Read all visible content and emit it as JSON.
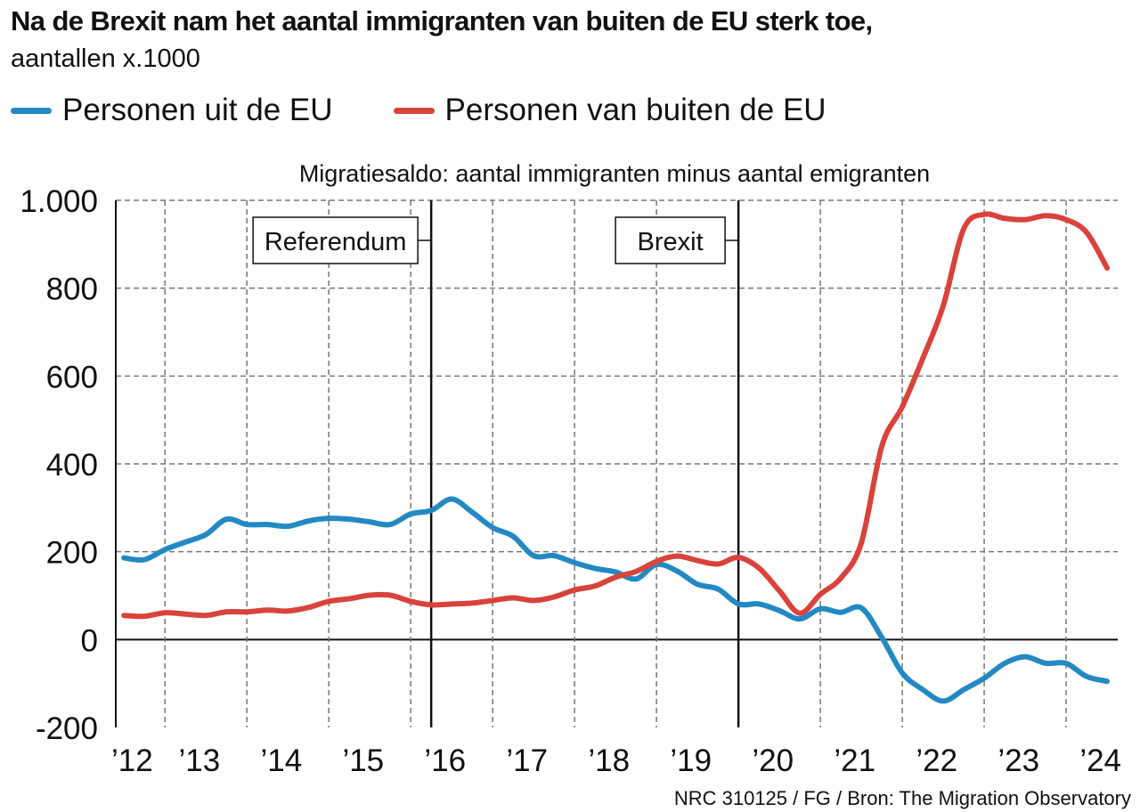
{
  "title": "Na de Brexit nam het aantal immigranten van buiten de EU sterk toe,",
  "subtitle": "aantallen x.1000",
  "source": "NRC 310125 / FG / Bron: The Migration Observatory",
  "chart_data": {
    "type": "line",
    "title": "Migratiesaldo: aantal immigranten minus  aantal emigranten",
    "xlim": [
      2012.4,
      2024.63
    ],
    "ylim": [
      -200,
      1000
    ],
    "yticks": [
      -200,
      0,
      200,
      400,
      600,
      800,
      1000
    ],
    "ytick_labels": [
      "-200",
      "0",
      "200",
      "400",
      "600",
      "800",
      "1.000"
    ],
    "xtick_labels": [
      "’12",
      "’13",
      "’14",
      "’15",
      "’16",
      "’17",
      "’18",
      "’19",
      "’20",
      "’21",
      "’22",
      "’23",
      "’24"
    ],
    "grid": true,
    "legend_placement": "top-left",
    "annotations": [
      {
        "label": "Referendum",
        "x": 2016.25
      },
      {
        "label": "Brexit",
        "x": 2020.0
      }
    ],
    "series": [
      {
        "name": "Personen uit de EU",
        "color": "#2389c3",
        "x": [
          2012.5,
          2012.75,
          2013,
          2013.25,
          2013.5,
          2013.75,
          2014,
          2014.25,
          2014.5,
          2014.75,
          2015,
          2015.25,
          2015.5,
          2015.75,
          2016,
          2016.25,
          2016.5,
          2016.75,
          2017,
          2017.25,
          2017.5,
          2017.75,
          2018,
          2018.25,
          2018.5,
          2018.75,
          2019,
          2019.25,
          2019.5,
          2019.75,
          2020,
          2020.25,
          2020.5,
          2020.75,
          2021,
          2021.25,
          2021.5,
          2021.75,
          2022,
          2022.25,
          2022.5,
          2022.75,
          2023,
          2023.25,
          2023.5,
          2023.75,
          2024,
          2024.25,
          2024.5
        ],
        "values": [
          186,
          182,
          205,
          222,
          239,
          274,
          262,
          262,
          258,
          270,
          276,
          274,
          268,
          262,
          286,
          294,
          320,
          290,
          255,
          235,
          191,
          191,
          175,
          162,
          154,
          138,
          171,
          156,
          126,
          115,
          81,
          81,
          66,
          47,
          70,
          62,
          72,
          5,
          -76,
          -114,
          -140,
          -114,
          -88,
          -54,
          -39,
          -54,
          -54,
          -84,
          -95
        ]
      },
      {
        "name": "Personen van buiten de EU",
        "color": "#d9433b",
        "x": [
          2012.5,
          2012.75,
          2013,
          2013.25,
          2013.5,
          2013.75,
          2014,
          2014.25,
          2014.5,
          2014.75,
          2015,
          2015.25,
          2015.5,
          2015.75,
          2016,
          2016.25,
          2016.5,
          2016.75,
          2017,
          2017.25,
          2017.5,
          2017.75,
          2018,
          2018.25,
          2018.5,
          2018.75,
          2019,
          2019.25,
          2019.5,
          2019.75,
          2020,
          2020.25,
          2020.5,
          2020.75,
          2021,
          2021.25,
          2021.5,
          2021.75,
          2022,
          2022.25,
          2022.5,
          2022.75,
          2023,
          2023.25,
          2023.5,
          2023.75,
          2024,
          2024.25,
          2024.5
        ],
        "values": [
          55,
          53,
          61,
          58,
          55,
          63,
          63,
          67,
          65,
          73,
          87,
          93,
          101,
          101,
          87,
          79,
          81,
          83,
          89,
          95,
          89,
          97,
          113,
          122,
          142,
          155,
          178,
          190,
          180,
          172,
          187,
          163,
          111,
          60,
          103,
          140,
          220,
          440,
          530,
          640,
          760,
          935,
          968,
          959,
          956,
          965,
          956,
          927,
          846
        ]
      }
    ]
  }
}
